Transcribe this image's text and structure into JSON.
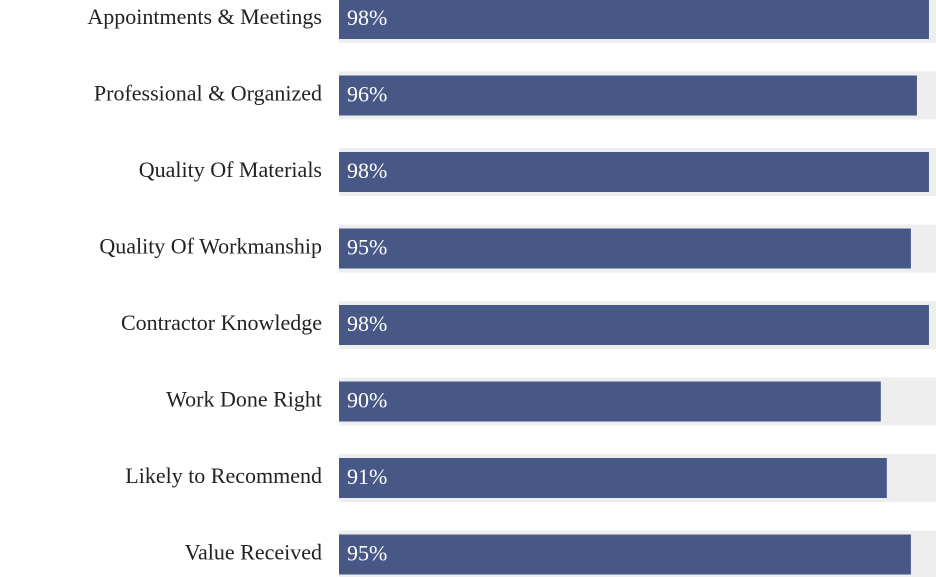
{
  "chart_data": {
    "type": "bar",
    "orientation": "horizontal",
    "categories": [
      "Appointments & Meetings",
      "Professional & Organized",
      "Quality Of Materials",
      "Quality Of Workmanship",
      "Contractor Knowledge",
      "Work Done Right",
      "Likely to Recommend",
      "Value Received"
    ],
    "values": [
      98,
      96,
      98,
      95,
      98,
      90,
      91,
      95
    ],
    "value_labels": [
      "98%",
      "96%",
      "98%",
      "95%",
      "98%",
      "90%",
      "91%",
      "95%"
    ],
    "xlim": [
      0,
      100
    ],
    "color": "#475887",
    "track_color": "#eeeeee"
  }
}
